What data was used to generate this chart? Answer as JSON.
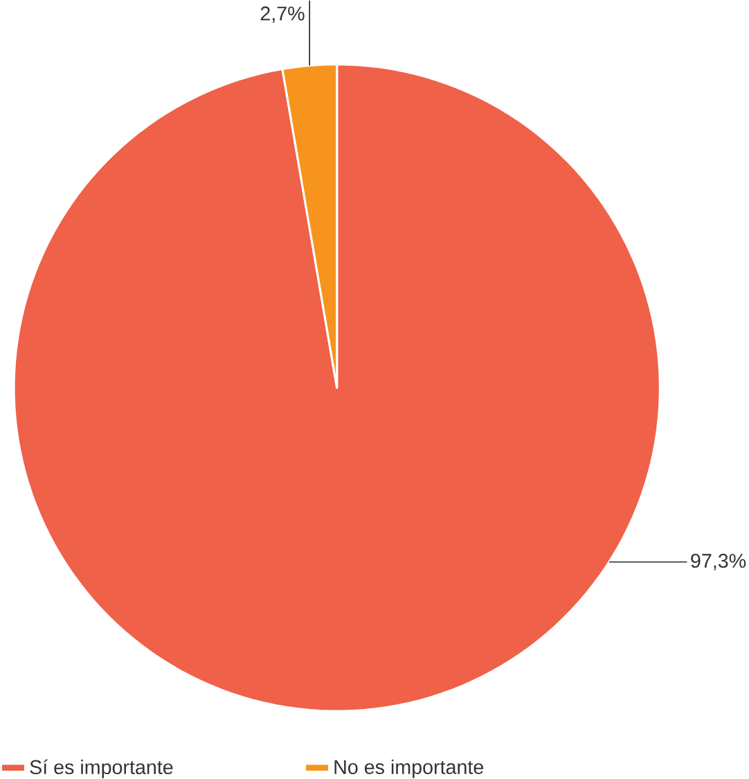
{
  "chart_data": {
    "type": "pie",
    "categories": [
      "Sí es importante",
      "No es importante"
    ],
    "values": [
      97.3,
      2.7
    ],
    "colors": [
      "#ef6149",
      "#f7941d"
    ],
    "value_labels": [
      "97,3%",
      "2,7%"
    ],
    "legend": "bottom"
  }
}
